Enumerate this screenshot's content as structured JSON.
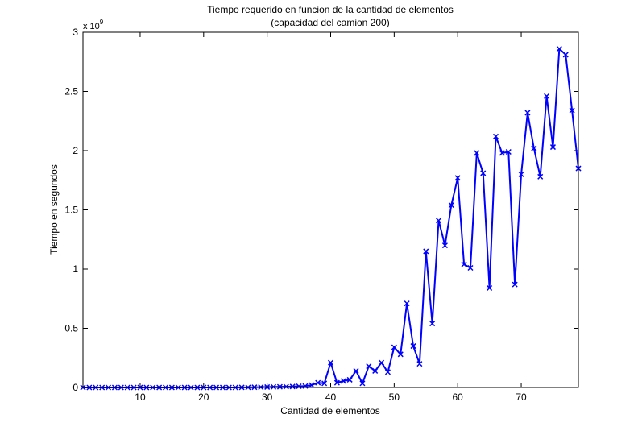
{
  "chart_data": {
    "type": "line",
    "title": "Tiempo requerido en funcion de la cantidad de elementos",
    "subtitle": "(capacidad del camion 200)",
    "xlabel": "Cantidad de elementos",
    "ylabel": "Tiempo en segundos",
    "exponent_label": {
      "base": "x 10",
      "power": "9"
    },
    "xlim": [
      1,
      79
    ],
    "ylim": [
      0,
      3
    ],
    "xticks": [
      10,
      20,
      30,
      40,
      50,
      60,
      70
    ],
    "xtick_labels": [
      "10",
      "20",
      "30",
      "40",
      "50",
      "60",
      "70"
    ],
    "yticks": [
      0,
      0.5,
      1,
      1.5,
      2,
      2.5,
      3
    ],
    "ytick_labels": [
      "0",
      "0.5",
      "1",
      "1.5",
      "2",
      "2.5",
      "3"
    ],
    "grid": false,
    "line_color": "#0000ff",
    "marker": "x",
    "y_scale_factor": 1000000000,
    "series": [
      {
        "x": [
          1,
          2,
          3,
          4,
          5,
          6,
          7,
          8,
          9,
          10,
          11,
          12,
          13,
          14,
          15,
          16,
          17,
          18,
          19,
          20,
          21,
          22,
          23,
          24,
          25,
          26,
          27,
          28,
          29,
          30,
          31,
          32,
          33,
          34,
          35,
          36,
          37,
          38,
          39,
          40,
          41,
          42,
          43,
          44,
          45,
          46,
          47,
          48,
          49,
          50,
          51,
          52,
          53,
          54,
          55,
          56,
          57,
          58,
          59,
          60,
          61,
          62,
          63,
          64,
          65,
          66,
          67,
          68,
          69,
          70,
          71,
          72,
          73,
          74,
          75,
          76,
          77,
          78,
          79
        ],
        "y": [
          0,
          0,
          0,
          0,
          0,
          0,
          0,
          0,
          0,
          0,
          0,
          0,
          0,
          0,
          0,
          0,
          0,
          0,
          0,
          0,
          0,
          0,
          0,
          0,
          0,
          0.001,
          0.001,
          0.002,
          0.003,
          0.004,
          0.005,
          0.006,
          0.007,
          0.008,
          0.01,
          0.012,
          0.02,
          0.04,
          0.035,
          0.21,
          0.04,
          0.055,
          0.065,
          0.14,
          0.035,
          0.18,
          0.14,
          0.21,
          0.13,
          0.34,
          0.28,
          0.71,
          0.35,
          0.2,
          1.15,
          0.54,
          1.41,
          1.2,
          1.54,
          1.77,
          1.04,
          1.01,
          1.98,
          1.81,
          0.84,
          2.12,
          1.98,
          1.99,
          0.87,
          1.8,
          2.32,
          2.02,
          1.78,
          2.46,
          2.03,
          2.86,
          2.81,
          2.34,
          1.85
        ]
      }
    ]
  }
}
